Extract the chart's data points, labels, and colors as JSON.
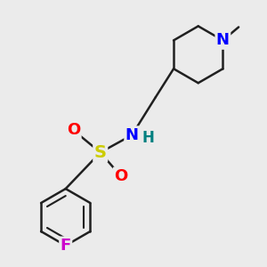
{
  "bg_color": "#ebebeb",
  "bond_color": "#202020",
  "bond_width": 1.8,
  "atom_colors": {
    "N": "#0000ff",
    "S": "#cccc00",
    "O": "#ff0000",
    "F": "#cc00cc",
    "H": "#008080",
    "C": "#202020"
  },
  "scale": 1.0
}
